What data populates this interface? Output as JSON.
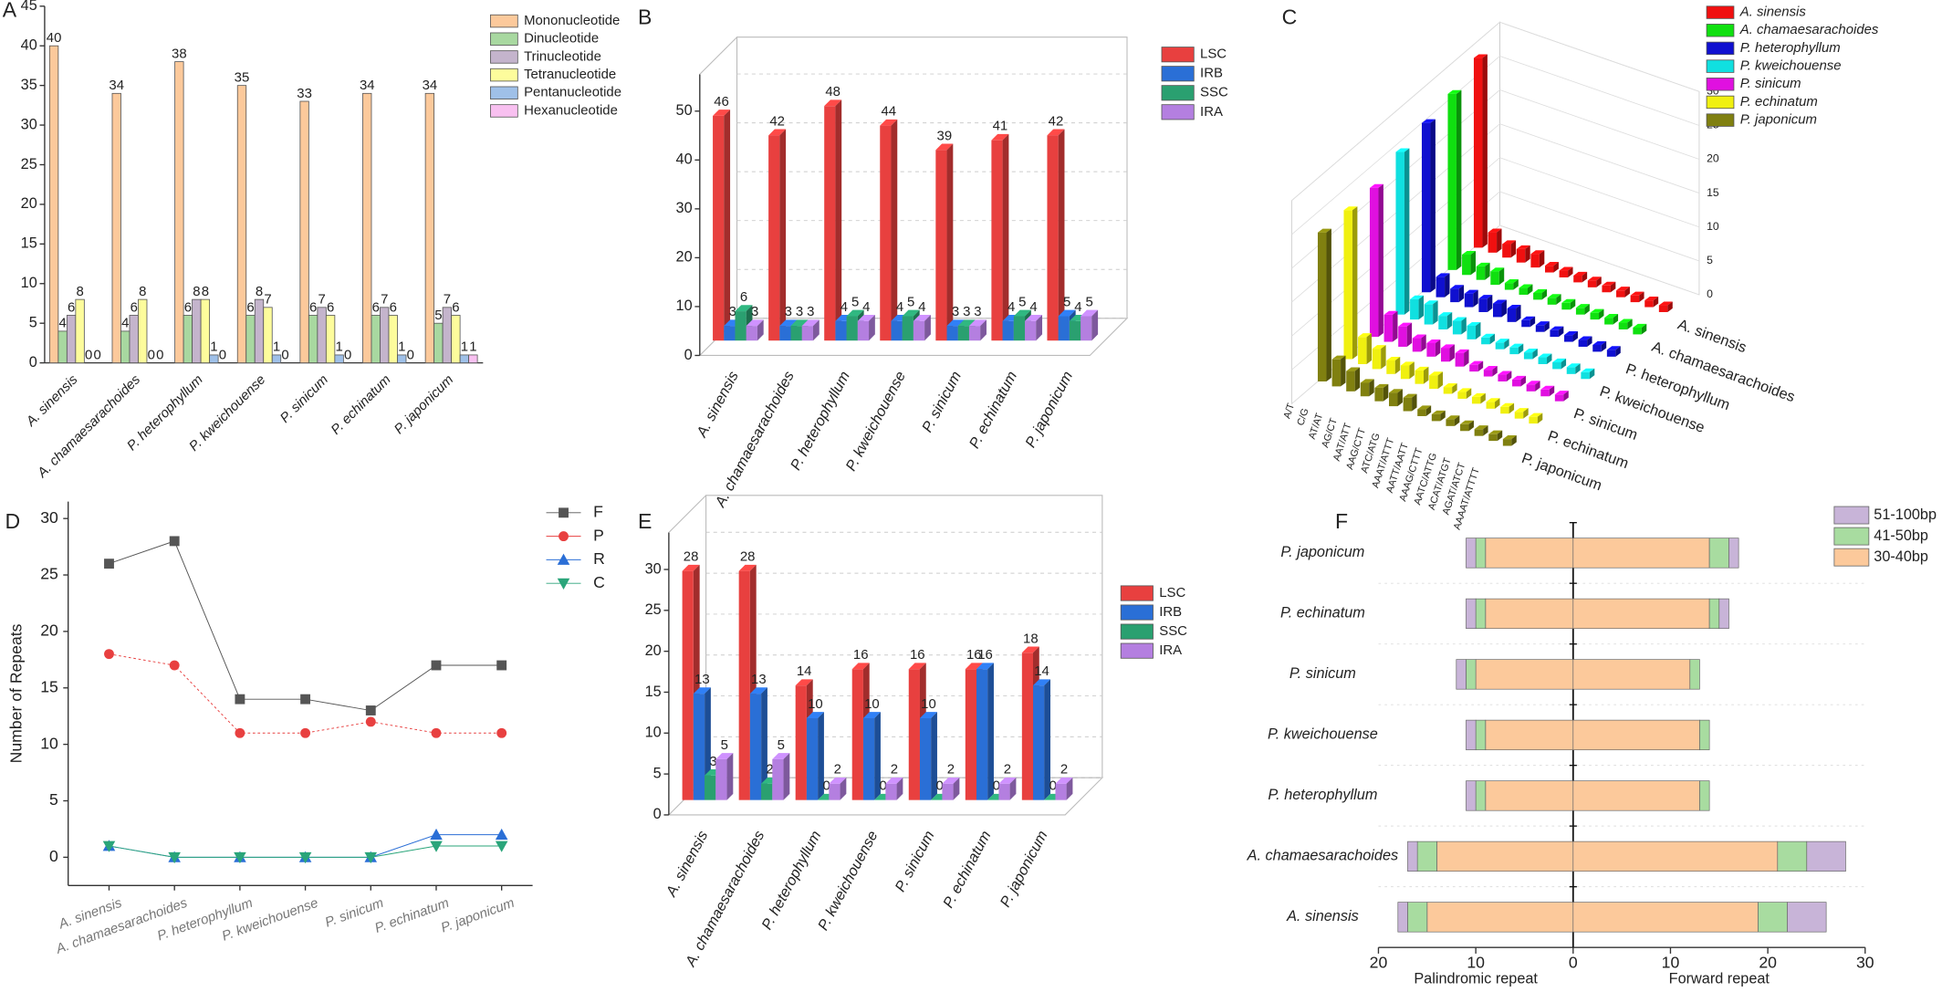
{
  "chart_data": [
    {
      "type": "bar",
      "panel": "A",
      "categories": [
        "A. sinensis",
        "A. chamaesarachoides",
        "P. heterophyllum",
        "P. kweichouense",
        "P. sinicum",
        "P. echinatum",
        "P. japonicum"
      ],
      "series": [
        {
          "name": "Mononucleotide",
          "color": "#fcc99b",
          "values": [
            40,
            34,
            38,
            35,
            33,
            34,
            34
          ]
        },
        {
          "name": "Dinucleotide",
          "color": "#a8d8a0",
          "values": [
            4,
            4,
            6,
            6,
            6,
            6,
            5
          ]
        },
        {
          "name": "Trinucleotide",
          "color": "#c4b4cc",
          "values": [
            6,
            6,
            8,
            8,
            7,
            7,
            7
          ]
        },
        {
          "name": "Tetranucleotide",
          "color": "#fdfc9c",
          "values": [
            8,
            8,
            8,
            7,
            6,
            6,
            6
          ]
        },
        {
          "name": "Pentanucleotide",
          "color": "#9fc0e8",
          "values": [
            0,
            0,
            1,
            1,
            1,
            1,
            1
          ]
        },
        {
          "name": "Hexanucleotide",
          "color": "#f8c0f0",
          "values": [
            0,
            0,
            0,
            0,
            0,
            0,
            1
          ]
        }
      ],
      "ylim": [
        0,
        45
      ],
      "yticks": [
        0,
        5,
        10,
        15,
        20,
        25,
        30,
        35,
        40,
        45
      ]
    },
    {
      "type": "bar3d",
      "panel": "B",
      "categories": [
        "A. sinensis",
        "A. chamaesarachoides",
        "P. heterophyllum",
        "P. kweichouense",
        "P. sinicum",
        "P. echinatum",
        "P. japonicum"
      ],
      "series": [
        {
          "name": "LSC",
          "color": "#e8403f",
          "values": [
            46,
            42,
            48,
            44,
            39,
            41,
            42
          ]
        },
        {
          "name": "IRB",
          "color": "#2a6fd6",
          "values": [
            3,
            3,
            4,
            4,
            3,
            4,
            5
          ]
        },
        {
          "name": "SSC",
          "color": "#2aa070",
          "values": [
            6,
            3,
            5,
            5,
            3,
            5,
            4
          ]
        },
        {
          "name": "IRA",
          "color": "#b47fe0",
          "values": [
            3,
            3,
            4,
            4,
            3,
            4,
            5
          ]
        }
      ],
      "ylim": [
        0,
        55
      ],
      "yticks": [
        0,
        10,
        20,
        30,
        40,
        50
      ]
    },
    {
      "type": "bar3d_matrix",
      "panel": "C",
      "categories": [
        "A/T",
        "C/G",
        "AT/AT",
        "AG/CT",
        "AAT/ATT",
        "AAG/CTT",
        "ATC/ATG",
        "AAAT/ATTT",
        "AATT/AATT",
        "AAAG/CTTT",
        "AATC/ATTG",
        "ACAT/ATGT",
        "AGAT/ATCT",
        "AAAAT/ATTTT"
      ],
      "series": [
        {
          "name": "A. sinensis",
          "color": "#f01010",
          "values": [
            28,
            3,
            2,
            2,
            2,
            1,
            1,
            1,
            1,
            1,
            1,
            1,
            1,
            1
          ]
        },
        {
          "name": "A. chamaesarachoides",
          "color": "#10e010",
          "values": [
            26,
            3,
            2,
            2,
            1,
            1,
            1,
            1,
            1,
            1,
            1,
            1,
            1,
            1
          ]
        },
        {
          "name": "P. heterophyllum",
          "color": "#1010d0",
          "values": [
            25,
            3,
            2,
            2,
            2,
            2,
            2,
            1,
            1,
            1,
            1,
            1,
            1,
            1
          ]
        },
        {
          "name": "P. kweichouense",
          "color": "#10e0e0",
          "values": [
            24,
            3,
            3,
            2,
            2,
            2,
            1,
            1,
            1,
            1,
            1,
            1,
            1,
            1
          ]
        },
        {
          "name": "P. sinicum",
          "color": "#e010e0",
          "values": [
            22,
            4,
            3,
            2,
            2,
            2,
            2,
            1,
            1,
            1,
            1,
            1,
            1,
            1
          ]
        },
        {
          "name": "P. echinatum",
          "color": "#f0f010",
          "values": [
            22,
            4,
            3,
            2,
            2,
            2,
            2,
            1,
            1,
            1,
            1,
            1,
            1,
            1
          ]
        },
        {
          "name": "P. japonicum",
          "color": "#808010",
          "values": [
            22,
            4,
            3,
            2,
            2,
            2,
            2,
            1,
            1,
            1,
            1,
            1,
            1,
            1
          ]
        }
      ],
      "zlim": [
        0,
        30
      ],
      "zticks": [
        0,
        5,
        10,
        15,
        20,
        25,
        30
      ]
    },
    {
      "type": "line",
      "panel": "D",
      "ylabel": "Number of Repeats",
      "categories": [
        "A. sinensis",
        "A. chamaesarachoides",
        "P. heterophyllum",
        "P. kweichouense",
        "P. sinicum",
        "P. echinatum",
        "P. japonicum"
      ],
      "series": [
        {
          "name": "F",
          "color": "#555555",
          "marker": "square",
          "values": [
            26,
            28,
            14,
            14,
            13,
            17,
            17
          ]
        },
        {
          "name": "P",
          "color": "#e84040",
          "marker": "circle",
          "values": [
            18,
            17,
            11,
            11,
            12,
            11,
            11
          ]
        },
        {
          "name": "R",
          "color": "#2b6fd6",
          "marker": "triangle-up",
          "values": [
            1,
            0,
            0,
            0,
            0,
            2,
            2
          ]
        },
        {
          "name": "C",
          "color": "#2aa57a",
          "marker": "triangle-down",
          "values": [
            1,
            0,
            0,
            0,
            0,
            1,
            1
          ]
        }
      ],
      "ylim": [
        -2.5,
        31.5
      ],
      "yticks": [
        0,
        5,
        10,
        15,
        20,
        25,
        30
      ]
    },
    {
      "type": "bar3d",
      "panel": "E",
      "categories": [
        "A. sinensis",
        "A. chamaesarachoides",
        "P. heterophyllum",
        "P. kweichouense",
        "P. sinicum",
        "P. echinatum",
        "P. japonicum"
      ],
      "series": [
        {
          "name": "LSC",
          "color": "#e8403f",
          "values": [
            28,
            28,
            14,
            16,
            16,
            16,
            18
          ]
        },
        {
          "name": "IRB",
          "color": "#2a6fd6",
          "values": [
            13,
            13,
            10,
            10,
            10,
            16,
            14
          ]
        },
        {
          "name": "SSC",
          "color": "#2aa070",
          "values": [
            3,
            2,
            0,
            0,
            0,
            0,
            0
          ]
        },
        {
          "name": "IRA",
          "color": "#b47fe0",
          "values": [
            5,
            5,
            2,
            2,
            2,
            2,
            2
          ]
        }
      ],
      "ylim": [
        0,
        33
      ],
      "yticks": [
        0,
        5,
        10,
        15,
        20,
        25,
        30
      ]
    },
    {
      "type": "diverging_bar",
      "panel": "F",
      "xlabel_left": "Palindromic repeat",
      "xlabel_right": "Forward repeat",
      "categories": [
        "P. japonicum",
        "P. echinatum",
        "P. sinicum",
        "P. kweichouense",
        "P. heterophyllum",
        "A. chamaesarachoides",
        "A. sinensis"
      ],
      "series": [
        {
          "name": "30-40bp",
          "color": "#fcc99b",
          "values_left": [
            9,
            9,
            10,
            9,
            9,
            14,
            15
          ],
          "values_right": [
            14,
            14,
            12,
            13,
            13,
            21,
            19
          ]
        },
        {
          "name": "41-50bp",
          "color": "#a8dca0",
          "values_left": [
            1,
            1,
            1,
            1,
            1,
            2,
            2
          ],
          "values_right": [
            2,
            1,
            1,
            1,
            1,
            3,
            3
          ]
        },
        {
          "name": "51-100bp",
          "color": "#c8b4d8",
          "values_left": [
            1,
            1,
            1,
            1,
            1,
            1,
            1
          ],
          "values_right": [
            1,
            1,
            0,
            0,
            0,
            4,
            4
          ]
        }
      ],
      "xlim": [
        -20,
        30
      ],
      "xticks": [
        {
          "value": -20,
          "label": "20"
        },
        {
          "value": -10,
          "label": "10"
        },
        0,
        10,
        20,
        30
      ]
    }
  ]
}
